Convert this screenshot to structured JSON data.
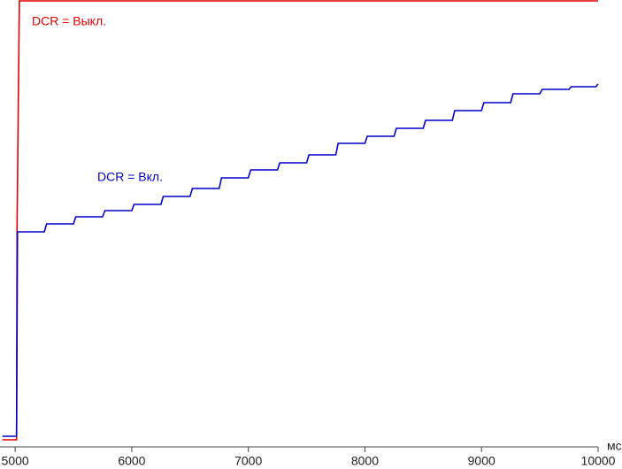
{
  "chart_data": {
    "type": "line",
    "x_unit": "мс",
    "annotations": [
      "DCR = Выкл.",
      "DCR = Вкл."
    ],
    "xlim": [
      4870,
      10000
    ],
    "xticks": [
      5000,
      6000,
      7000,
      8000,
      9000,
      10000
    ],
    "ylim": [
      0,
      100
    ],
    "series": [
      {
        "name": "DCR = Выкл.",
        "color": "#e00000",
        "x": [
          4890,
          5012,
          5016,
          5036,
          10000
        ],
        "values": [
          0.6,
          0.6,
          48,
          99.8,
          99.8
        ]
      },
      {
        "name": "DCR = Вкл.",
        "color": "#0000c8",
        "x": [
          4890,
          5012,
          5020,
          5250,
          5270,
          5500,
          5520,
          5750,
          5770,
          6000,
          6020,
          6250,
          6270,
          6500,
          6520,
          6750,
          6770,
          7000,
          7020,
          7250,
          7270,
          7500,
          7520,
          7750,
          7770,
          8000,
          8020,
          8250,
          8270,
          8500,
          8520,
          8750,
          8770,
          9000,
          9020,
          9250,
          9270,
          9500,
          9520,
          9750,
          9770,
          9980,
          10000
        ],
        "values": [
          1.4,
          1.4,
          47.6,
          47.6,
          49.4,
          49.4,
          51,
          51,
          52.4,
          52.4,
          53.8,
          53.8,
          55.6,
          55.6,
          57.4,
          57.4,
          59.8,
          59.8,
          61.6,
          61.6,
          63.2,
          63.2,
          65,
          65,
          67.6,
          67.6,
          69.2,
          69.2,
          71,
          71,
          72.8,
          72.8,
          75,
          75,
          76.8,
          76.8,
          78.8,
          78.8,
          79.8,
          79.8,
          80.4,
          80.4,
          81
        ]
      }
    ]
  }
}
